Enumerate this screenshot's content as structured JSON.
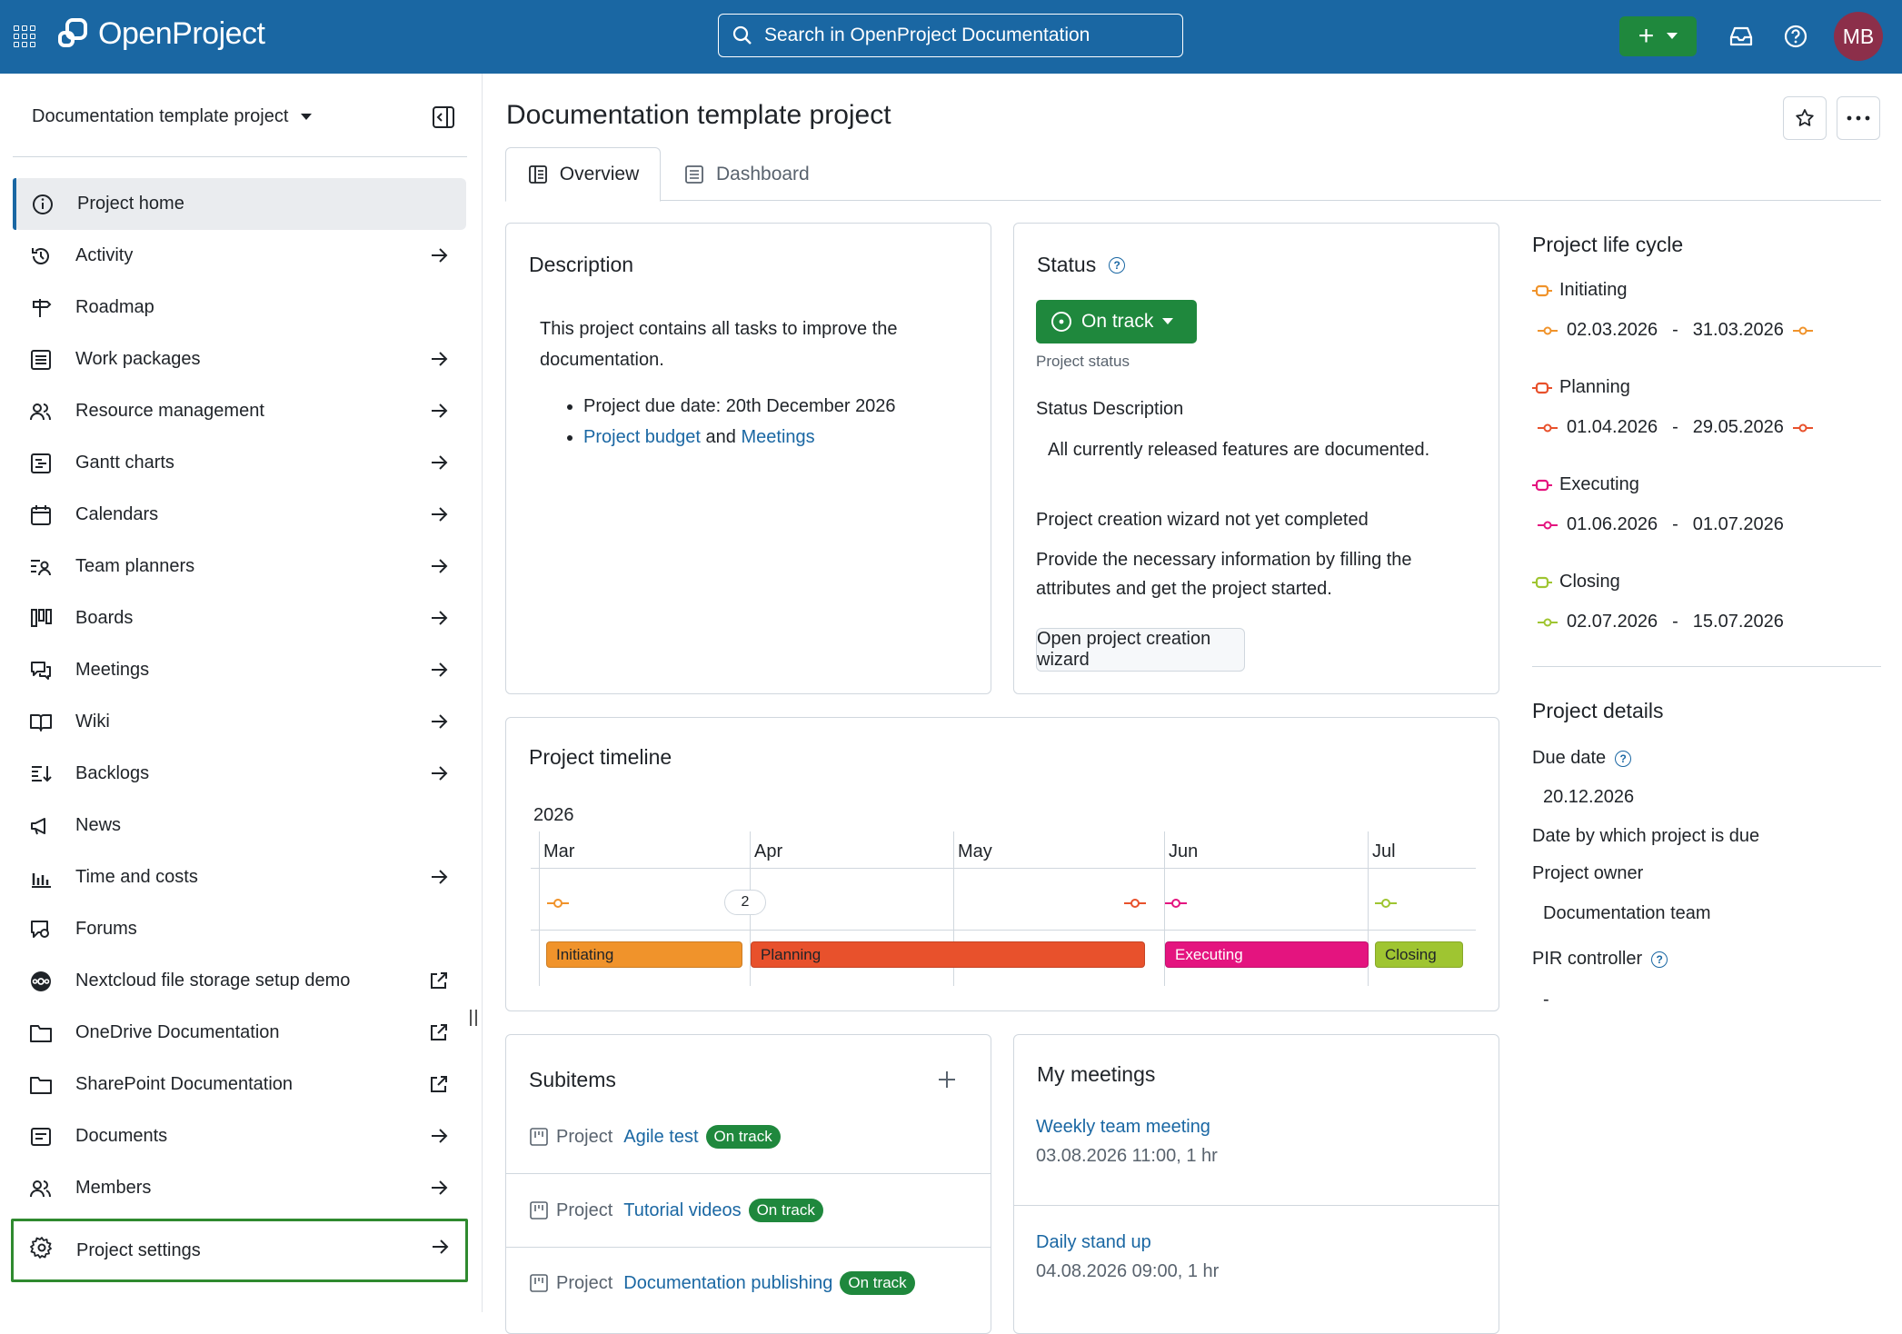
{
  "header": {
    "logo_text": "OpenProject",
    "search_placeholder": "Search in OpenProject Documentation",
    "avatar_initials": "MB",
    "create_label": "+"
  },
  "sidebar": {
    "project_name": "Documentation template project",
    "items": [
      {
        "label": "Project home",
        "icon": "info-icon",
        "arrow": false,
        "external": false
      },
      {
        "label": "Activity",
        "icon": "history-icon",
        "arrow": true,
        "external": false
      },
      {
        "label": "Roadmap",
        "icon": "signpost-icon",
        "arrow": false,
        "external": false
      },
      {
        "label": "Work packages",
        "icon": "list-icon",
        "arrow": true,
        "external": false
      },
      {
        "label": "Resource management",
        "icon": "people-icon",
        "arrow": true,
        "external": false
      },
      {
        "label": "Gantt charts",
        "icon": "gantt-icon",
        "arrow": true,
        "external": false
      },
      {
        "label": "Calendars",
        "icon": "calendar-icon",
        "arrow": true,
        "external": false
      },
      {
        "label": "Team planners",
        "icon": "team-planner-icon",
        "arrow": true,
        "external": false
      },
      {
        "label": "Boards",
        "icon": "board-icon",
        "arrow": true,
        "external": false
      },
      {
        "label": "Meetings",
        "icon": "meetings-icon",
        "arrow": true,
        "external": false
      },
      {
        "label": "Wiki",
        "icon": "book-icon",
        "arrow": true,
        "external": false
      },
      {
        "label": "Backlogs",
        "icon": "backlogs-icon",
        "arrow": true,
        "external": false
      },
      {
        "label": "News",
        "icon": "megaphone-icon",
        "arrow": false,
        "external": false
      },
      {
        "label": "Time and costs",
        "icon": "chart-bars-icon",
        "arrow": true,
        "external": false
      },
      {
        "label": "Forums",
        "icon": "forum-icon",
        "arrow": false,
        "external": false
      },
      {
        "label": "Nextcloud file storage setup demo",
        "icon": "nextcloud-icon",
        "arrow": false,
        "external": true
      },
      {
        "label": "OneDrive Documentation",
        "icon": "folder-icon",
        "arrow": false,
        "external": true
      },
      {
        "label": "SharePoint Documentation",
        "icon": "folder-icon",
        "arrow": false,
        "external": true
      },
      {
        "label": "Documents",
        "icon": "document-icon",
        "arrow": true,
        "external": false
      },
      {
        "label": "Members",
        "icon": "people-icon",
        "arrow": true,
        "external": false
      },
      {
        "label": "Project settings",
        "icon": "gear-icon",
        "arrow": true,
        "external": false
      }
    ]
  },
  "main": {
    "title": "Documentation template project",
    "tabs": [
      {
        "label": "Overview"
      },
      {
        "label": "Dashboard"
      }
    ],
    "description": {
      "heading": "Description",
      "text": "This project contains all tasks to improve the documentation.",
      "bullet1": "Project due date: 20th December 2026",
      "link1": "Project budget",
      "and": "and",
      "link2": "Meetings"
    },
    "status": {
      "heading": "Status",
      "button": "On track",
      "caption": "Project status",
      "desc_heading": "Status Description",
      "desc_text": "All currently released features are documented.",
      "wizard_heading": "Project creation wizard not yet completed",
      "wizard_text": "Provide the necessary information by filling the attributes and get the project started.",
      "wizard_button": "Open project creation wizard"
    },
    "timeline": {
      "heading": "Project timeline",
      "year": "2026",
      "months": [
        "Mar",
        "Apr",
        "May",
        "Jun",
        "Jul"
      ],
      "cluster_count": "2",
      "phases": [
        "Initiating",
        "Planning",
        "Executing",
        "Closing"
      ]
    },
    "subitems": {
      "heading": "Subitems",
      "rows": [
        {
          "type": "Project",
          "name": "Agile test",
          "status": "On track"
        },
        {
          "type": "Project",
          "name": "Tutorial videos",
          "status": "On track"
        },
        {
          "type": "Project",
          "name": "Documentation publishing",
          "status": "On track"
        }
      ]
    },
    "meetings": {
      "heading": "My meetings",
      "items": [
        {
          "title": "Weekly team meeting",
          "when": "03.08.2026 11:00, 1 hr"
        },
        {
          "title": "Daily stand up",
          "when": "04.08.2026 09:00, 1 hr"
        }
      ]
    }
  },
  "right": {
    "lifecycle_heading": "Project life cycle",
    "phases": [
      {
        "name": "Initiating",
        "start": "02.03.2026",
        "end": "31.03.2026",
        "color": "#f0932b"
      },
      {
        "name": "Planning",
        "start": "01.04.2026",
        "end": "29.05.2026",
        "color": "#e8512c"
      },
      {
        "name": "Executing",
        "start": "01.06.2026",
        "end": "01.07.2026",
        "color": "#e4147f"
      },
      {
        "name": "Closing",
        "start": "02.07.2026",
        "end": "15.07.2026",
        "color": "#9fc531"
      }
    ],
    "dash": "-",
    "details_heading": "Project details",
    "due_label": "Due date",
    "due_value": "20.12.2026",
    "due_caption": "Date by which project is due",
    "owner_label": "Project owner",
    "owner_value": "Documentation team",
    "pir_label": "PIR controller",
    "pir_value": "-"
  }
}
